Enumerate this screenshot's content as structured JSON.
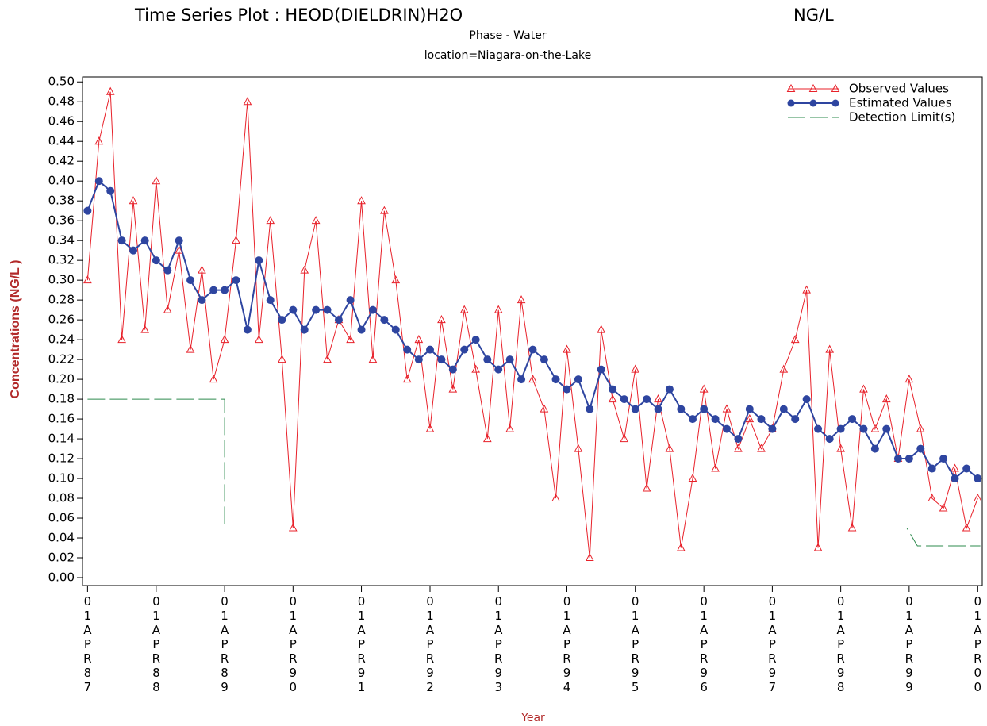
{
  "chart_data": {
    "type": "line",
    "title": "Time Series Plot :  HEOD(DIELDRIN)H2O",
    "title_unit": "NG/L",
    "subtitle": "Phase - Water",
    "subtitle2": "location=Niagara-on-the-Lake",
    "ylabel": "Concentrations (NG/L     )",
    "xlabel": "Year",
    "legend": "upper right",
    "x": [
      "1987-04-01",
      "1987-06-01",
      "1987-08-01",
      "1987-10-01",
      "1987-12-01",
      "1988-02-01",
      "1988-04-01",
      "1988-06-01",
      "1988-08-01",
      "1988-10-01",
      "1988-12-01",
      "1989-02-01",
      "1989-04-01",
      "1989-06-01",
      "1989-08-01",
      "1989-10-01",
      "1989-12-01",
      "1990-02-01",
      "1990-04-01",
      "1990-06-01",
      "1990-08-01",
      "1990-10-01",
      "1990-12-01",
      "1991-02-01",
      "1991-04-01",
      "1991-06-01",
      "1991-08-01",
      "1991-10-01",
      "1991-12-01",
      "1992-02-01",
      "1992-04-01",
      "1992-06-01",
      "1992-08-01",
      "1992-10-01",
      "1992-12-01",
      "1993-02-01",
      "1993-04-01",
      "1993-06-01",
      "1993-08-01",
      "1993-10-01",
      "1993-12-01",
      "1994-02-01",
      "1994-04-01",
      "1994-06-01",
      "1994-08-01",
      "1994-10-01",
      "1994-12-01",
      "1995-02-01",
      "1995-04-01",
      "1995-06-01",
      "1995-08-01",
      "1995-10-01",
      "1995-12-01",
      "1996-02-01",
      "1996-04-01",
      "1996-06-01",
      "1996-08-01",
      "1996-10-01",
      "1996-12-01",
      "1997-02-01",
      "1997-04-01",
      "1997-06-01",
      "1997-08-01",
      "1997-10-01",
      "1997-12-01",
      "1998-02-01",
      "1998-04-01",
      "1998-06-01",
      "1998-08-01",
      "1998-10-01",
      "1998-12-01",
      "1999-02-01",
      "1999-04-01",
      "1999-06-01",
      "1999-08-01",
      "1999-10-01",
      "1999-12-01",
      "2000-02-01",
      "2000-04-01"
    ],
    "series": [
      {
        "name": "Observed Values",
        "color": "#e8212a",
        "marker": "triangle",
        "values": [
          0.3,
          0.44,
          0.49,
          0.24,
          0.38,
          0.25,
          0.4,
          0.27,
          0.33,
          0.23,
          0.31,
          0.2,
          0.24,
          0.34,
          0.48,
          0.24,
          0.36,
          0.22,
          0.05,
          0.31,
          0.36,
          0.22,
          0.26,
          0.24,
          0.38,
          0.22,
          0.37,
          0.3,
          0.2,
          0.24,
          0.15,
          0.26,
          0.19,
          0.27,
          0.21,
          0.14,
          0.27,
          0.15,
          0.28,
          0.2,
          0.17,
          0.08,
          0.23,
          0.13,
          0.02,
          0.25,
          0.18,
          0.14,
          0.21,
          0.09,
          0.18,
          0.13,
          0.03,
          0.1,
          0.19,
          0.11,
          0.17,
          0.13,
          0.16,
          0.13,
          0.15,
          0.21,
          0.24,
          0.29,
          0.03,
          0.23,
          0.13,
          0.05,
          0.19,
          0.15,
          0.18,
          0.12,
          0.2,
          0.15,
          0.08,
          0.07,
          0.11,
          0.05,
          0.08
        ]
      },
      {
        "name": "Estimated Values",
        "color": "#2e45a0",
        "marker": "circle",
        "values": [
          0.37,
          0.4,
          0.39,
          0.34,
          0.33,
          0.34,
          0.32,
          0.31,
          0.34,
          0.3,
          0.28,
          0.29,
          0.29,
          0.3,
          0.25,
          0.32,
          0.28,
          0.26,
          0.27,
          0.25,
          0.27,
          0.27,
          0.26,
          0.28,
          0.25,
          0.27,
          0.26,
          0.25,
          0.23,
          0.22,
          0.23,
          0.22,
          0.21,
          0.23,
          0.24,
          0.22,
          0.21,
          0.22,
          0.2,
          0.23,
          0.22,
          0.2,
          0.19,
          0.2,
          0.17,
          0.21,
          0.19,
          0.18,
          0.17,
          0.18,
          0.17,
          0.19,
          0.17,
          0.16,
          0.17,
          0.16,
          0.15,
          0.14,
          0.17,
          0.16,
          0.15,
          0.17,
          0.16,
          0.18,
          0.15,
          0.14,
          0.15,
          0.16,
          0.15,
          0.13,
          0.15,
          0.12,
          0.12,
          0.13,
          0.11,
          0.12,
          0.1,
          0.11,
          0.1
        ]
      },
      {
        "name": "Detection Limit(s)",
        "color": "#2e8b4e",
        "marker": "dash",
        "x": [
          "1987-04-01",
          "1989-04-01",
          "1989-04-01",
          "1999-03-20",
          "1999-05-15",
          "2000-04-15"
        ],
        "values": [
          0.18,
          0.18,
          0.05,
          0.05,
          0.032,
          0.032
        ]
      }
    ],
    "xlim": [
      "1987-03-05",
      "2000-04-25"
    ],
    "xticks": [
      {
        "value": "1987-04-01",
        "label": "01APR87"
      },
      {
        "value": "1988-04-01",
        "label": "01APR88"
      },
      {
        "value": "1989-04-01",
        "label": "01APR89"
      },
      {
        "value": "1990-04-01",
        "label": "01APR90"
      },
      {
        "value": "1991-04-01",
        "label": "01APR91"
      },
      {
        "value": "1992-04-01",
        "label": "01APR92"
      },
      {
        "value": "1993-04-01",
        "label": "01APR93"
      },
      {
        "value": "1994-04-01",
        "label": "01APR94"
      },
      {
        "value": "1995-04-01",
        "label": "01APR95"
      },
      {
        "value": "1996-04-01",
        "label": "01APR96"
      },
      {
        "value": "1997-04-01",
        "label": "01APR97"
      },
      {
        "value": "1998-04-01",
        "label": "01APR98"
      },
      {
        "value": "1999-04-01",
        "label": "01APR99"
      },
      {
        "value": "2000-04-01",
        "label": "01APR00"
      }
    ],
    "ylim": [
      -0.008,
      0.505
    ],
    "yticks": [
      {
        "value": 0,
        "label": "0.00"
      },
      {
        "value": 0.02,
        "label": "0.02"
      },
      {
        "value": 0.04,
        "label": "0.04"
      },
      {
        "value": 0.06,
        "label": "0.06"
      },
      {
        "value": 0.08,
        "label": "0.08"
      },
      {
        "value": 0.1,
        "label": "0.10"
      },
      {
        "value": 0.12,
        "label": "0.12"
      },
      {
        "value": 0.14,
        "label": "0.14"
      },
      {
        "value": 0.16,
        "label": "0.16"
      },
      {
        "value": 0.18,
        "label": "0.18"
      },
      {
        "value": 0.2,
        "label": "0.20"
      },
      {
        "value": 0.22,
        "label": "0.22"
      },
      {
        "value": 0.24,
        "label": "0.24"
      },
      {
        "value": 0.26,
        "label": "0.26"
      },
      {
        "value": 0.28,
        "label": "0.28"
      },
      {
        "value": 0.3,
        "label": "0.30"
      },
      {
        "value": 0.32,
        "label": "0.32"
      },
      {
        "value": 0.34,
        "label": "0.34"
      },
      {
        "value": 0.36,
        "label": "0.36"
      },
      {
        "value": 0.38,
        "label": "0.38"
      },
      {
        "value": 0.4,
        "label": "0.40"
      },
      {
        "value": 0.42,
        "label": "0.42"
      },
      {
        "value": 0.44,
        "label": "0.44"
      },
      {
        "value": 0.46,
        "label": "0.46"
      },
      {
        "value": 0.48,
        "label": "0.48"
      },
      {
        "value": 0.5,
        "label": "0.50"
      }
    ]
  }
}
